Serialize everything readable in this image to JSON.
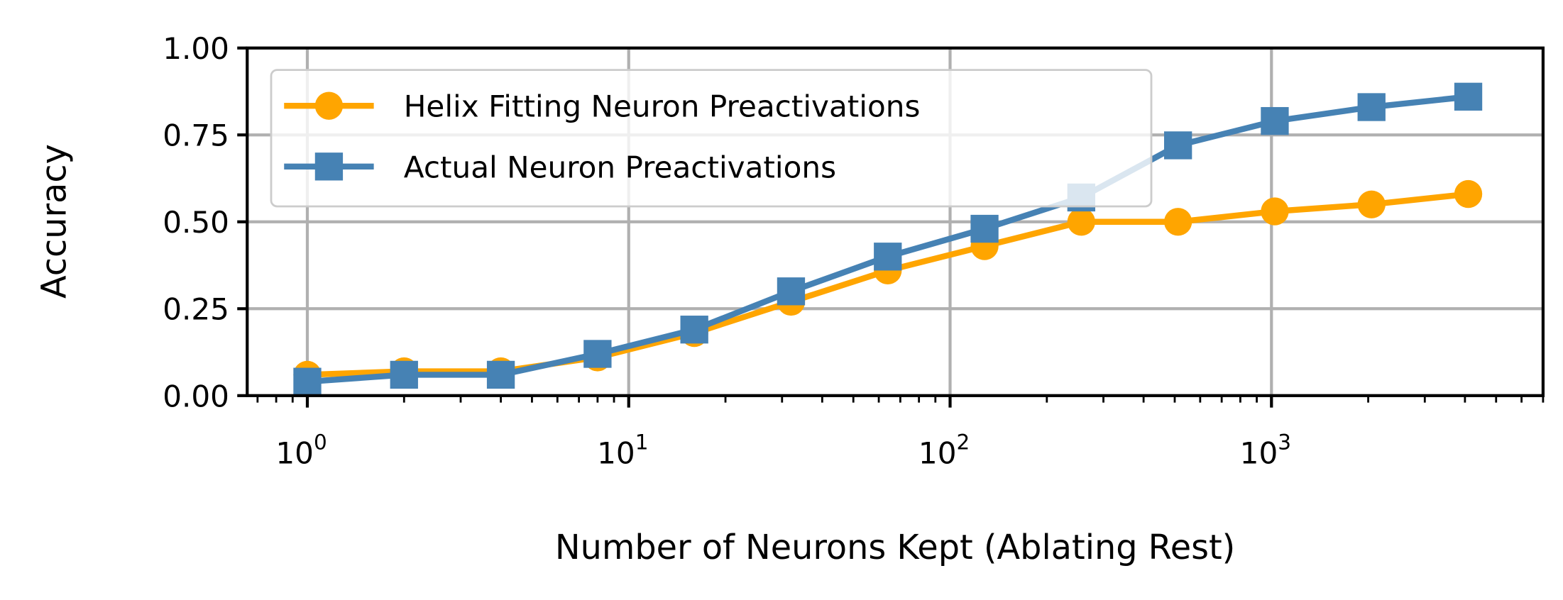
{
  "chart_data": {
    "type": "line",
    "title": "",
    "xlabel": "Number of Neurons Kept (Ablating Rest)",
    "ylabel": "Accuracy",
    "xscale": "log",
    "xlim": [
      0.65,
      7000
    ],
    "ylim": [
      0,
      1
    ],
    "grid": true,
    "legend_position": "upper-left",
    "x": [
      1,
      2,
      4,
      8,
      16,
      32,
      64,
      128,
      256,
      512,
      1024,
      2048,
      4096
    ],
    "xticks": [
      {
        "value": 1,
        "base": "10",
        "exp": "0"
      },
      {
        "value": 10,
        "base": "10",
        "exp": "1"
      },
      {
        "value": 100,
        "base": "10",
        "exp": "2"
      },
      {
        "value": 1000,
        "base": "10",
        "exp": "3"
      }
    ],
    "yticks": [
      {
        "value": 0,
        "label": "0.00"
      },
      {
        "value": 0.25,
        "label": "0.25"
      },
      {
        "value": 0.5,
        "label": "0.50"
      },
      {
        "value": 0.75,
        "label": "0.75"
      },
      {
        "value": 1,
        "label": "1.00"
      }
    ],
    "series": [
      {
        "name": "Helix Fitting Neuron Preactivations",
        "color": "#FFA500",
        "marker": "circle",
        "values": [
          0.06,
          0.07,
          0.07,
          0.11,
          0.18,
          0.27,
          0.36,
          0.43,
          0.5,
          0.5,
          0.53,
          0.55,
          0.58
        ]
      },
      {
        "name": "Actual Neuron Preactivations",
        "color": "#4682B4",
        "marker": "square",
        "values": [
          0.04,
          0.06,
          0.06,
          0.12,
          0.19,
          0.3,
          0.4,
          0.48,
          0.57,
          0.72,
          0.79,
          0.83,
          0.86
        ]
      }
    ]
  }
}
